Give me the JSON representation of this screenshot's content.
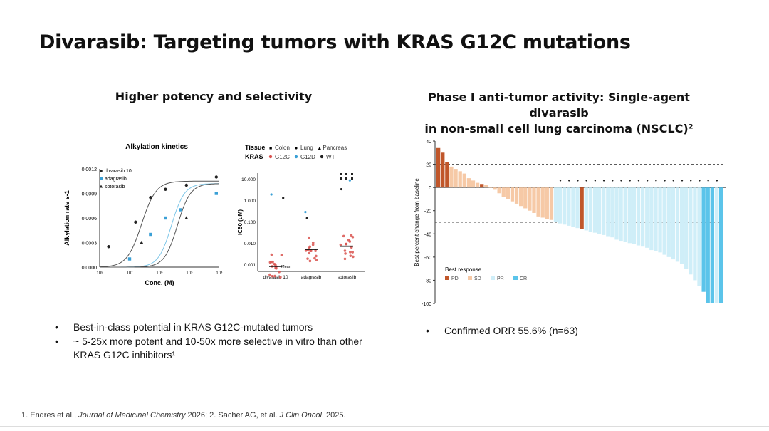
{
  "slide": {
    "title": "Divarasib: Targeting tumors with KRAS G12C mutations",
    "left_heading": "Higher potency and selectivity",
    "right_heading_line1": "Phase I anti-tumor activity: Single-agent divarasib",
    "right_heading_line2": "in non-small cell lung carcinoma (NSCLC)²",
    "left_bullets": [
      "Best-in-class potential in KRAS G12C-mutated tumors",
      "~ 5-25x more potent and 10-50x more selective in vitro than other KRAS G12C inhibitors¹"
    ],
    "right_bullets": [
      "Confirmed ORR 55.6% (n=63)"
    ],
    "footnote_a": "1. Endres et al., ",
    "footnote_b": "Journal of Medicinal Chemistry",
    "footnote_c": " 2026; 2. Sacher AG, et al. ",
    "footnote_d": "J Clin Oncol",
    "footnote_e": ". 2025."
  },
  "chart_data": [
    {
      "type": "line",
      "title": "Alkylation kinetics",
      "xlabel": "Conc. (M)",
      "ylabel": "Alkylation rate s-1",
      "x_ticks": [
        "10⁸",
        "10⁷",
        "10⁶",
        "10⁵",
        "10⁴"
      ],
      "y_ticks": [
        "0.0000",
        "0.0003",
        "0.0006",
        "0.0009",
        "0.0012"
      ],
      "log_x": true,
      "xlim_log10": [
        -8,
        -4
      ],
      "ylim": [
        0,
        0.0012
      ],
      "series": [
        {
          "name": "divarasib 10",
          "color": "#222222",
          "marker": "circle",
          "points": [
            [
              -7.7,
              0.00025
            ],
            [
              -6.8,
              0.00055
            ],
            [
              -6.3,
              0.00085
            ],
            [
              -5.8,
              0.00095
            ],
            [
              -5.1,
              0.001
            ],
            [
              -4.1,
              0.0011
            ]
          ],
          "curve": {
            "top": 0.00105,
            "ec50_log": -6.6,
            "hill": 0.9
          }
        },
        {
          "name": "adagrasib",
          "color": "#3aa0d6",
          "marker": "square",
          "points": [
            [
              -7.0,
              0.0001
            ],
            [
              -6.3,
              0.0004
            ],
            [
              -5.8,
              0.0006
            ],
            [
              -5.3,
              0.0007
            ],
            [
              -4.1,
              0.0009
            ]
          ],
          "curve": {
            "top": 0.00102,
            "ec50_log": -5.6,
            "hill": 1.0
          }
        },
        {
          "name": "sotorasib",
          "color": "#222222",
          "marker": "triangle",
          "points": [
            [
              -6.6,
              0.0003
            ],
            [
              -5.1,
              0.0006
            ]
          ],
          "curve": {
            "top": 0.00102,
            "ec50_log": -5.4,
            "hill": 1.0
          }
        }
      ]
    },
    {
      "type": "scatter",
      "legend_tissue_label": "Tissue",
      "legend_tissue": [
        {
          "glyph": "■",
          "name": "Colon"
        },
        {
          "glyph": "●",
          "name": "Lung"
        },
        {
          "glyph": "▲",
          "name": "Pancreas"
        }
      ],
      "legend_kras_label": "KRAS",
      "legend_kras": [
        {
          "name": "G12C",
          "color": "#d9534f"
        },
        {
          "name": "G12D",
          "color": "#3aa0d6"
        },
        {
          "name": "WT",
          "color": "#222222"
        }
      ],
      "ylabel": "IC50 (uM)",
      "y_ticks": [
        "10.000",
        "1.000",
        "0.100",
        "0.010",
        "0.001"
      ],
      "categories": [
        "divarasib 10",
        "adagrasib",
        "sotorasib"
      ],
      "median_label": "Mean"
    },
    {
      "type": "bar",
      "ylabel": "Best percent change from baseline",
      "y_ticks": [
        "40",
        "20",
        "0",
        "-20",
        "-40",
        "-60",
        "-80",
        "-100"
      ],
      "ylim": [
        -100,
        40
      ],
      "reference_lines": [
        20,
        -30
      ],
      "legend_title": "Best response",
      "legend": [
        {
          "name": "PD",
          "color": "#c0562a"
        },
        {
          "name": "SD",
          "color": "#f6c9a6"
        },
        {
          "name": "PR",
          "color": "#cfeef8"
        },
        {
          "name": "CR",
          "color": "#5bc4ea"
        }
      ],
      "values": [
        34,
        30,
        22,
        18,
        16,
        14,
        12,
        8,
        6,
        4,
        3,
        2,
        0,
        -2,
        -5,
        -8,
        -10,
        -12,
        -14,
        -16,
        -18,
        -20,
        -22,
        -25,
        -26,
        -27,
        -28,
        -30,
        -31,
        -32,
        -33,
        -34,
        -35,
        -36,
        -37,
        -38,
        -39,
        -40,
        -41,
        -42,
        -43,
        -45,
        -46,
        -47,
        -48,
        -49,
        -50,
        -51,
        -52,
        -54,
        -55,
        -56,
        -58,
        -60,
        -62,
        -64,
        -66,
        -70,
        -75,
        -80,
        -85,
        -90,
        -100,
        -100,
        -100,
        -100
      ],
      "responses": [
        "PD",
        "PD",
        "PD",
        "SD",
        "SD",
        "SD",
        "SD",
        "SD",
        "SD",
        "SD",
        "PD",
        "SD",
        "SD",
        "SD",
        "SD",
        "SD",
        "SD",
        "SD",
        "SD",
        "SD",
        "SD",
        "SD",
        "SD",
        "SD",
        "SD",
        "SD",
        "SD",
        "PR",
        "PR",
        "PR",
        "PR",
        "PR",
        "PR",
        "PD",
        "PR",
        "PR",
        "PR",
        "PR",
        "PR",
        "PR",
        "PR",
        "PR",
        "PR",
        "PR",
        "PR",
        "PR",
        "PR",
        "PR",
        "PR",
        "PR",
        "PR",
        "PR",
        "PR",
        "PR",
        "PR",
        "PR",
        "PR",
        "PR",
        "PR",
        "PR",
        "PR",
        "CR",
        "CR",
        "CR",
        "PR",
        "CR"
      ]
    }
  ]
}
